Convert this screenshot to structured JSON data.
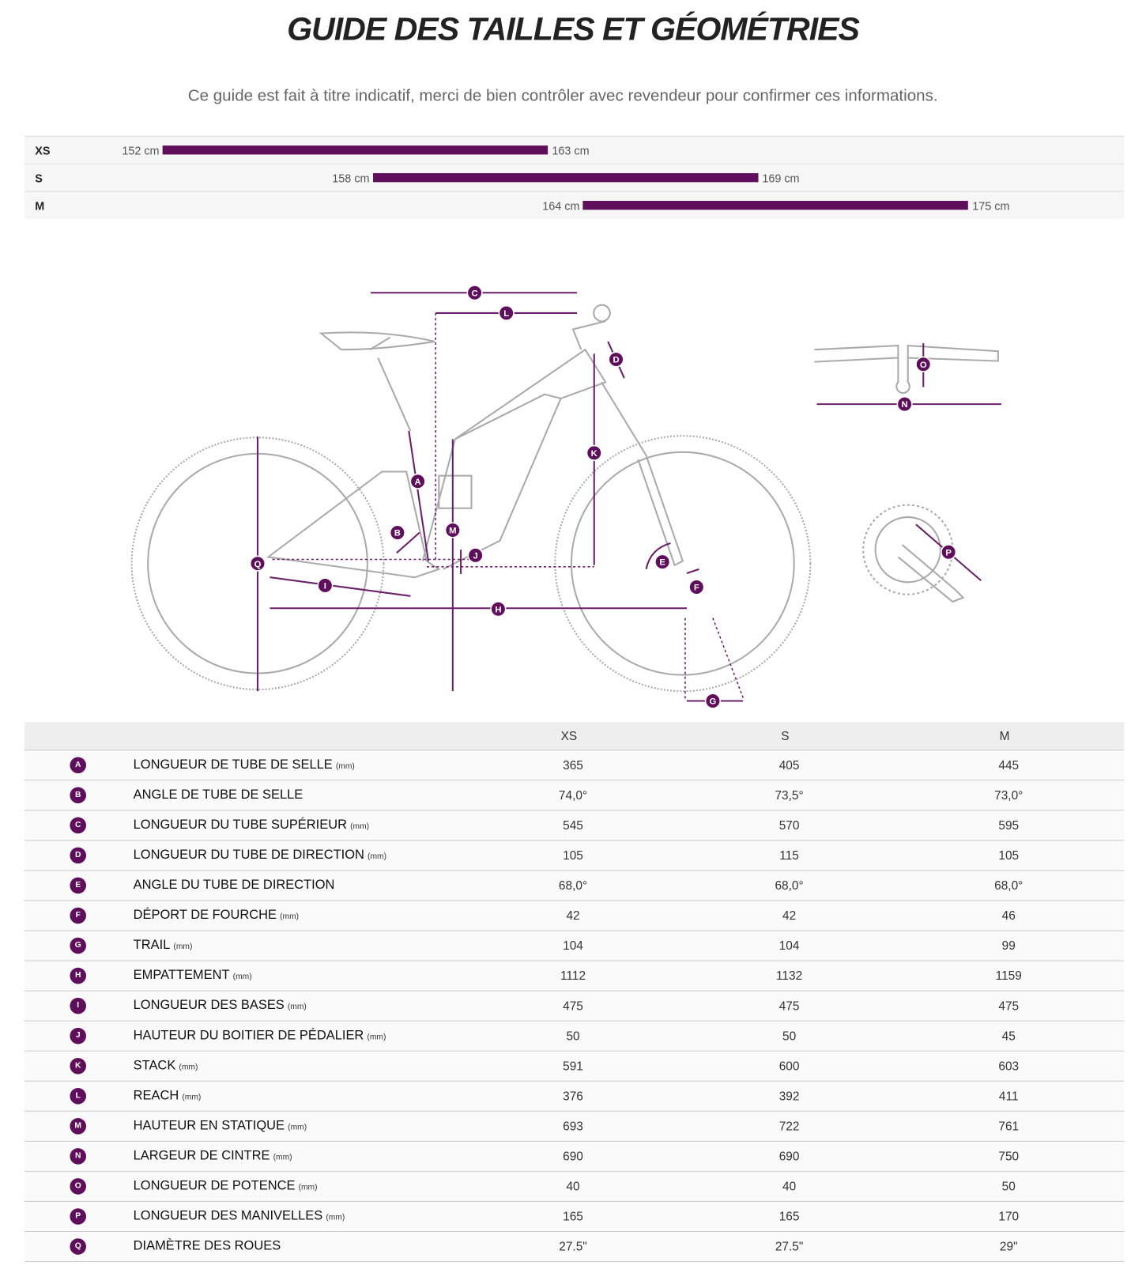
{
  "header": {
    "title": "GUIDE DES TAILLES ET GÉOMÉTRIES",
    "subtitle": "Ce guide est fait à titre indicatif, merci de bien contrôler avec revendeur pour confirmer ces informations."
  },
  "size_ranges": [
    {
      "size": "XS",
      "min": {
        "value": 152,
        "label": "152 cm"
      },
      "max": {
        "value": 163,
        "label": "163 cm"
      }
    },
    {
      "size": "S",
      "min": {
        "value": 158,
        "label": "158 cm"
      },
      "max": {
        "value": 169,
        "label": "169 cm"
      }
    },
    {
      "size": "M",
      "min": {
        "value": 164,
        "label": "164 cm"
      },
      "max": {
        "value": 175,
        "label": "175 cm"
      }
    }
  ],
  "table": {
    "columns": [
      "XS",
      "S",
      "M"
    ],
    "rows": [
      {
        "letter": "A",
        "label": "LONGUEUR DE TUBE DE SELLE",
        "unit": "(mm)",
        "values": [
          "365",
          "405",
          "445"
        ]
      },
      {
        "letter": "B",
        "label": "ANGLE DE TUBE DE SELLE",
        "values": [
          "74,0°",
          "73,5°",
          "73,0°"
        ]
      },
      {
        "letter": "C",
        "label": "LONGUEUR DU TUBE SUPÉRIEUR",
        "unit": "(mm)",
        "values": [
          "545",
          "570",
          "595"
        ]
      },
      {
        "letter": "D",
        "label": "LONGUEUR DU TUBE DE DIRECTION",
        "unit": "(mm)",
        "values": [
          "105",
          "115",
          "105"
        ]
      },
      {
        "letter": "E",
        "label": "ANGLE DU TUBE DE DIRECTION",
        "values": [
          "68,0°",
          "68,0°",
          "68,0°"
        ]
      },
      {
        "letter": "F",
        "label": "DÉPORT DE FOURCHE",
        "unit": "(mm)",
        "values": [
          "42",
          "42",
          "46"
        ]
      },
      {
        "letter": "G",
        "label": "TRAIL",
        "unit": "(mm)",
        "values": [
          "104",
          "104",
          "99"
        ]
      },
      {
        "letter": "H",
        "label": "EMPATTEMENT",
        "unit": "(mm)",
        "values": [
          "1112",
          "1132",
          "1159"
        ]
      },
      {
        "letter": "I",
        "label": "LONGUEUR DES BASES",
        "unit": "(mm)",
        "values": [
          "475",
          "475",
          "475"
        ]
      },
      {
        "letter": "J",
        "label": "HAUTEUR DU BOITIER DE PÉDALIER",
        "unit": "(mm)",
        "values": [
          "50",
          "50",
          "45"
        ]
      },
      {
        "letter": "K",
        "label": "STACK",
        "unit": "(mm)",
        "values": [
          "591",
          "600",
          "603"
        ]
      },
      {
        "letter": "L",
        "label": "REACH",
        "unit": "(mm)",
        "values": [
          "376",
          "392",
          "411"
        ]
      },
      {
        "letter": "M",
        "label": "HAUTEUR EN STATIQUE",
        "unit": "(mm)",
        "values": [
          "693",
          "722",
          "761"
        ]
      },
      {
        "letter": "N",
        "label": "LARGEUR DE CINTRE",
        "unit": "(mm)",
        "values": [
          "690",
          "690",
          "750"
        ]
      },
      {
        "letter": "O",
        "label": "LONGUEUR DE POTENCE",
        "unit": "(mm)",
        "values": [
          "40",
          "40",
          "50"
        ]
      },
      {
        "letter": "P",
        "label": "LONGUEUR DES MANIVELLES",
        "unit": "(mm)",
        "values": [
          "165",
          "165",
          "170"
        ]
      },
      {
        "letter": "Q",
        "label": "DIAMÈTRE DES ROUES",
        "values": [
          "27.5\"",
          "27.5\"",
          "29\""
        ]
      }
    ]
  }
}
